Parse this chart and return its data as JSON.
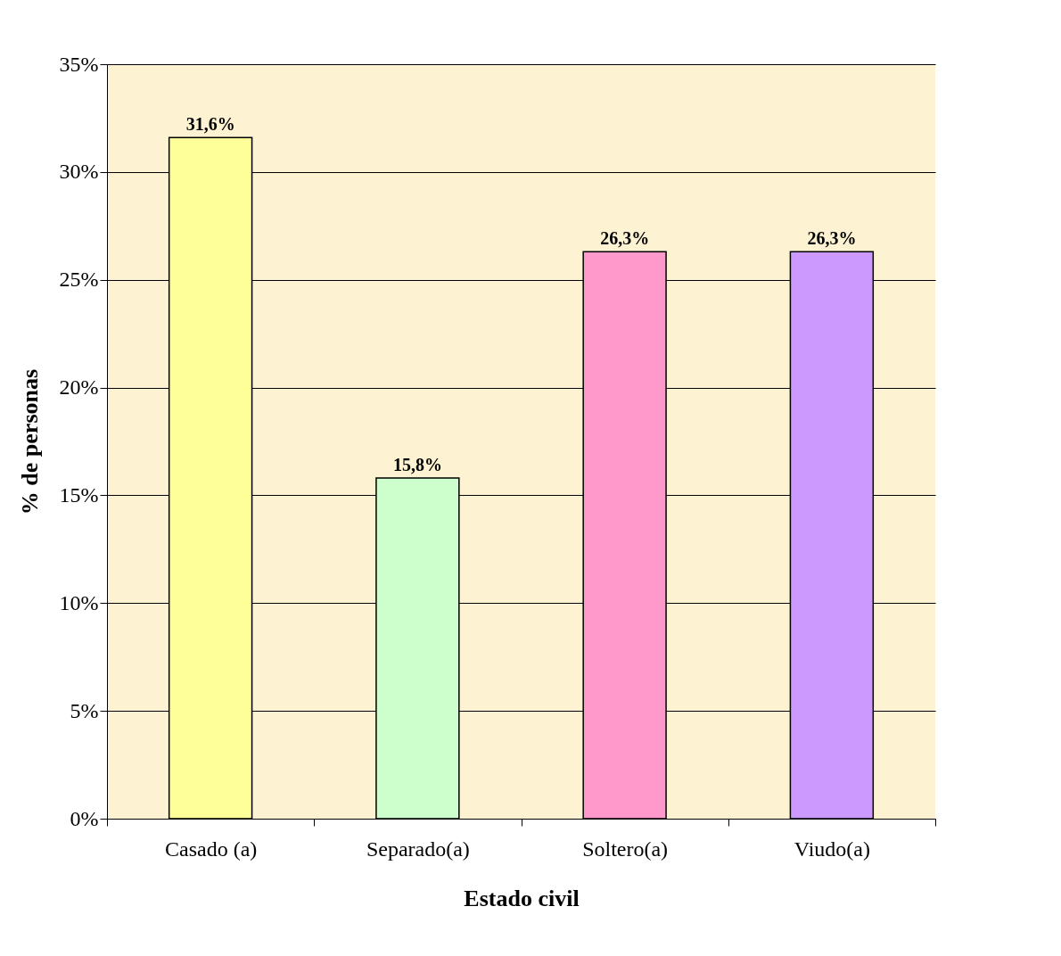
{
  "chart_data": {
    "type": "bar",
    "xlabel": "Estado civil",
    "ylabel": "% de personas",
    "categories": [
      "Casado (a)",
      "Separado(a)",
      "Soltero(a)",
      "Viudo(a)"
    ],
    "values": [
      31.6,
      15.8,
      26.3,
      26.3
    ],
    "colors": [
      "#ffff99",
      "#ccffcc",
      "#ff99cc",
      "#cc99ff"
    ],
    "value_labels": [
      "31,6%",
      "15,8%",
      "26,3%",
      "26,3%"
    ],
    "ylim": [
      0,
      35
    ],
    "yticks": [
      {
        "value": 0,
        "label": "0%"
      },
      {
        "value": 5,
        "label": "5%"
      },
      {
        "value": 10,
        "label": "10%"
      },
      {
        "value": 15,
        "label": "15%"
      },
      {
        "value": 20,
        "label": "20%"
      },
      {
        "value": 25,
        "label": "25%"
      },
      {
        "value": 30,
        "label": "30%"
      },
      {
        "value": 35,
        "label": "35%"
      }
    ],
    "grid": "y"
  }
}
